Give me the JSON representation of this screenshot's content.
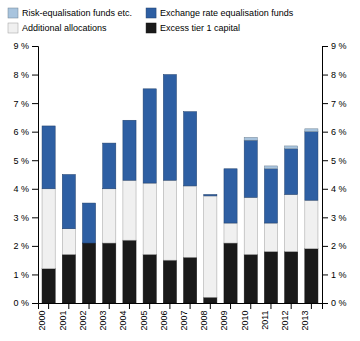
{
  "chart_data": {
    "type": "bar",
    "stacked": true,
    "categories": [
      "2000",
      "2001",
      "2002",
      "2003",
      "2004",
      "2005",
      "2006",
      "2007",
      "2008",
      "2009",
      "2010",
      "2011",
      "2012",
      "2013"
    ],
    "series": [
      {
        "name": "Excess tier 1 capital",
        "color": "#1a1a1a",
        "values": [
          1.2,
          1.7,
          2.1,
          2.1,
          2.2,
          1.7,
          1.5,
          1.6,
          0.2,
          2.1,
          1.7,
          1.8,
          1.8,
          1.9
        ]
      },
      {
        "name": "Additional allocations",
        "color": "#f0f0f0",
        "values": [
          2.8,
          0.9,
          0.0,
          1.9,
          2.1,
          2.5,
          2.8,
          2.5,
          3.55,
          0.7,
          2.0,
          1.0,
          2.0,
          1.7
        ]
      },
      {
        "name": "Exchange rate equalisation funds",
        "color": "#2e5fa3",
        "values": [
          2.2,
          1.9,
          1.4,
          1.6,
          2.1,
          3.3,
          3.7,
          2.6,
          0.05,
          1.9,
          2.0,
          1.9,
          1.6,
          2.4
        ]
      },
      {
        "name": "Risk-equalisation funds etc.",
        "color": "#a8c4de",
        "values": [
          0.0,
          0.0,
          0.0,
          0.0,
          0.0,
          0.0,
          0.0,
          0.0,
          0.0,
          0.0,
          0.1,
          0.1,
          0.1,
          0.1
        ]
      }
    ],
    "ylim": [
      0,
      9
    ],
    "yticks": [
      {
        "value": 0,
        "label": "0 %"
      },
      {
        "value": 1,
        "label": "1 %"
      },
      {
        "value": 2,
        "label": "2 %"
      },
      {
        "value": 3,
        "label": "3 %"
      },
      {
        "value": 4,
        "label": "4 %"
      },
      {
        "value": 5,
        "label": "5 %"
      },
      {
        "value": 6,
        "label": "6 %"
      },
      {
        "value": 7,
        "label": "7 %"
      },
      {
        "value": 8,
        "label": "8 %"
      },
      {
        "value": 9,
        "label": "9 %"
      }
    ],
    "y2lim": [
      0,
      9
    ],
    "y2ticks": [
      {
        "value": 0,
        "label": "0 %"
      },
      {
        "value": 1,
        "label": "1 %"
      },
      {
        "value": 2,
        "label": "2 %"
      },
      {
        "value": 3,
        "label": "3 %"
      },
      {
        "value": 4,
        "label": "4 %"
      },
      {
        "value": 5,
        "label": "5 %"
      },
      {
        "value": 6,
        "label": "6 %"
      },
      {
        "value": 7,
        "label": "7 %"
      },
      {
        "value": 8,
        "label": "8 %"
      },
      {
        "value": 9,
        "label": "9 %"
      }
    ],
    "grid": false,
    "legend": "top"
  }
}
